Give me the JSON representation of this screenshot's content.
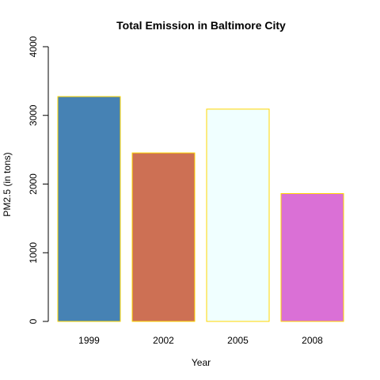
{
  "chart_data": {
    "type": "bar",
    "title": "Total Emission in Baltimore City",
    "xlabel": "Year",
    "ylabel": "PM2.5 (in tons)",
    "categories": [
      "1999",
      "2002",
      "2005",
      "2008"
    ],
    "values": [
      3274,
      2454,
      3091,
      1862
    ],
    "ylim": [
      0,
      4000
    ],
    "yticks": [
      0,
      1000,
      2000,
      3000,
      4000
    ],
    "bar_colors": [
      "#4682B4",
      "#CD7054",
      "#F0FFFF",
      "#DA70D6"
    ],
    "bar_border_color": "#FFD700",
    "grid": false,
    "legend": "none"
  }
}
